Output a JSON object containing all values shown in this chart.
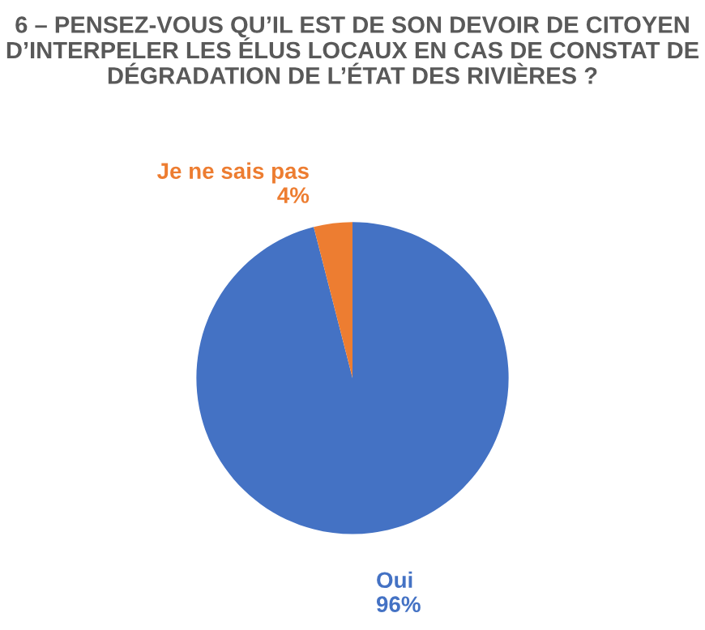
{
  "chart_data": {
    "type": "pie",
    "title": "6 – PENSEZ-VOUS QU’IL EST DE SON DEVOIR DE CITOYEN D’INTERPELER LES ÉLUS LOCAUX EN CAS DE CONSTAT DE DÉGRADATION DE L’ÉTAT DES RIVIÈRES ?",
    "categories": [
      "Oui",
      "Je ne sais pas"
    ],
    "values": [
      96,
      4
    ],
    "colors": [
      "#4472c4",
      "#ed7d31"
    ],
    "value_labels": [
      "96%",
      "4%"
    ]
  }
}
